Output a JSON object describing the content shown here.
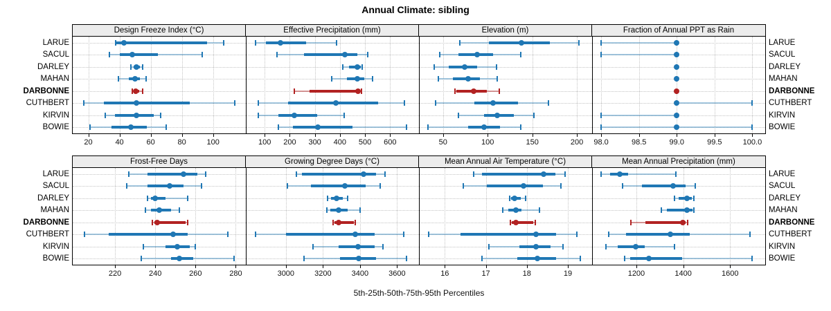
{
  "title": "Annual Climate: sibling",
  "caption": "5th-25th-50th-75th-95th Percentiles",
  "sites": [
    "LARUE",
    "SACUL",
    "DARLEY",
    "MAHAN",
    "DARBONNE",
    "CUTHBERT",
    "KIRVIN",
    "BOWIE"
  ],
  "highlight_site": "DARBONNE",
  "colors": {
    "series": "#1F77B4",
    "series_faint": "rgba(31,119,180,0.40)",
    "highlight": "#B22222",
    "highlight_faint": "rgba(178,34,34,0.45)",
    "strip_bg": "#ECECEC",
    "grid": "#C3C3C3",
    "border": "#000000"
  },
  "chart_data": {
    "type": "dot-whisker-percentile-trellis",
    "percentiles": [
      "5th",
      "25th",
      "50th",
      "75th",
      "95th"
    ],
    "legend_note": "thin line = 5th-95th, thick line = 25th-75th, dot = median; DARBONNE highlighted",
    "grid": "dotted",
    "panels": [
      {
        "title": "Design Freeze Index (°C)",
        "xlim": [
          10,
          121
        ],
        "ticks": [
          20,
          40,
          60,
          80,
          100
        ],
        "tick_labels": [
          "20",
          "40",
          "60",
          "80",
          "100"
        ],
        "series": [
          [
            37.5,
            38,
            43,
            96,
            107
          ],
          [
            33.5,
            40,
            48,
            64.5,
            93
          ],
          [
            47.5,
            49,
            51,
            53,
            55
          ],
          [
            39.5,
            46,
            50,
            53,
            57
          ],
          [
            48,
            49,
            50.5,
            52.5,
            55
          ],
          [
            17,
            30,
            51,
            85,
            114
          ],
          [
            31,
            37,
            51,
            62,
            66.5
          ],
          [
            21,
            35,
            47.5,
            57.5,
            70
          ]
        ]
      },
      {
        "title": "Effective Precipitation (mm)",
        "xlim": [
          25,
          715
        ],
        "ticks": [
          100,
          200,
          300,
          400,
          500,
          600
        ],
        "tick_labels": [
          "100",
          "200",
          "300",
          "400",
          "500",
          "600"
        ],
        "series": [
          [
            63,
            106,
            164,
            265,
            387
          ],
          [
            148,
            256,
            420,
            469,
            510
          ],
          [
            412,
            437,
            470,
            483,
            490
          ],
          [
            368,
            428,
            470,
            497,
            531
          ],
          [
            219,
            279,
            472,
            480,
            487
          ],
          [
            74,
            194,
            385,
            552,
            657
          ],
          [
            74,
            155,
            217,
            308,
            416
          ],
          [
            155,
            212,
            311,
            451,
            666
          ]
        ]
      },
      {
        "title": "Elevation (m)",
        "xlim": [
          23,
          217
        ],
        "ticks": [
          50,
          100,
          150,
          200
        ],
        "tick_labels": [
          "50",
          "100",
          "150",
          "200"
        ],
        "series": [
          [
            69,
            101,
            138,
            170,
            202
          ],
          [
            46,
            67,
            88,
            106,
            137
          ],
          [
            40,
            56,
            74,
            88,
            110
          ],
          [
            45,
            61,
            78,
            91,
            111
          ],
          [
            63,
            65,
            84,
            99,
            113
          ],
          [
            42,
            85,
            106,
            134,
            168
          ],
          [
            67,
            96,
            111,
            129,
            152
          ],
          [
            33,
            78,
            96,
            114,
            137
          ]
        ]
      },
      {
        "title": "Fraction of Annual PPT as Rain",
        "xlim": [
          97.88,
          100.17
        ],
        "ticks": [
          98,
          98.5,
          99,
          99.5,
          100
        ],
        "tick_labels": [
          "98.0",
          "98.5",
          "99.0",
          "99.5",
          "100.0"
        ],
        "series": [
          [
            98,
            99,
            99,
            99,
            99
          ],
          [
            98,
            99,
            99,
            99,
            99
          ],
          [
            99,
            99,
            99,
            99,
            99
          ],
          [
            99,
            99,
            99,
            99,
            99
          ],
          [
            99,
            99,
            99,
            99,
            99
          ],
          [
            99,
            99,
            99,
            99,
            100
          ],
          [
            98,
            99,
            99,
            99,
            99
          ],
          [
            98,
            99,
            99,
            99,
            100
          ]
        ]
      },
      {
        "title": "Frost-Free Days",
        "xlim": [
          199,
          285
        ],
        "ticks": [
          220,
          240,
          260,
          280
        ],
        "tick_labels": [
          "220",
          "240",
          "260",
          "280"
        ],
        "series": [
          [
            227,
            236,
            254,
            261,
            265
          ],
          [
            226,
            236,
            247,
            254,
            263
          ],
          [
            236,
            238,
            240,
            245,
            256
          ],
          [
            235,
            238,
            242,
            248,
            252
          ],
          [
            238.5,
            239.5,
            241,
            255,
            256
          ],
          [
            205,
            217,
            249,
            256,
            276
          ],
          [
            234,
            245,
            251,
            257,
            260
          ],
          [
            233,
            248,
            252,
            259,
            279
          ]
        ]
      },
      {
        "title": "Growing Degree Days (°C)",
        "xlim": [
          2784,
          3718
        ],
        "ticks": [
          3000,
          3200,
          3400,
          3600
        ],
        "tick_labels": [
          "3000",
          "3200",
          "3400",
          "3600"
        ],
        "series": [
          [
            3055,
            3085,
            3420,
            3485,
            3535
          ],
          [
            3010,
            3135,
            3320,
            3430,
            3510
          ],
          [
            3224,
            3242,
            3273,
            3308,
            3333
          ],
          [
            3220,
            3240,
            3285,
            3335,
            3400
          ],
          [
            3255,
            3262,
            3285,
            3368,
            3375
          ],
          [
            2835,
            3000,
            3375,
            3478,
            3635
          ],
          [
            3145,
            3285,
            3390,
            3478,
            3522
          ],
          [
            3097,
            3292,
            3394,
            3487,
            3650
          ]
        ]
      },
      {
        "title": "Mean Annual Air Temperature (°C)",
        "xlim": [
          15.37,
          19.59
        ],
        "ticks": [
          16,
          17,
          18,
          19
        ],
        "tick_labels": [
          "16",
          "17",
          "18",
          "19"
        ],
        "series": [
          [
            16.7,
            16.9,
            18.4,
            18.7,
            18.93
          ],
          [
            16.45,
            17.02,
            17.92,
            18.4,
            18.83
          ],
          [
            17.58,
            17.61,
            17.7,
            17.85,
            17.97
          ],
          [
            17.42,
            17.54,
            17.74,
            17.87,
            18.3
          ],
          [
            17.6,
            17.63,
            17.74,
            18.15,
            18.2
          ],
          [
            15.6,
            16.38,
            18.22,
            18.71,
            19.22
          ],
          [
            17.08,
            17.82,
            18.23,
            18.58,
            18.88
          ],
          [
            16.91,
            17.76,
            18.25,
            18.71,
            19.3
          ]
        ]
      },
      {
        "title": "Mean Annual Precipitation (mm)",
        "xlim": [
          1011,
          1750
        ],
        "ticks": [
          1200,
          1400,
          1600
        ],
        "tick_labels": [
          "1200",
          "1400",
          "1600"
        ],
        "series": [
          [
            1050,
            1088,
            1130,
            1165,
            1368
          ],
          [
            1141,
            1225,
            1356,
            1410,
            1451
          ],
          [
            1363,
            1380,
            1417,
            1437,
            1447
          ],
          [
            1306,
            1331,
            1416,
            1440,
            1447
          ],
          [
            1178,
            1240,
            1398,
            1410,
            1418
          ],
          [
            1083,
            1156,
            1346,
            1428,
            1686
          ],
          [
            1070,
            1119,
            1198,
            1235,
            1363
          ],
          [
            1149,
            1175,
            1254,
            1395,
            1694
          ]
        ]
      }
    ]
  }
}
